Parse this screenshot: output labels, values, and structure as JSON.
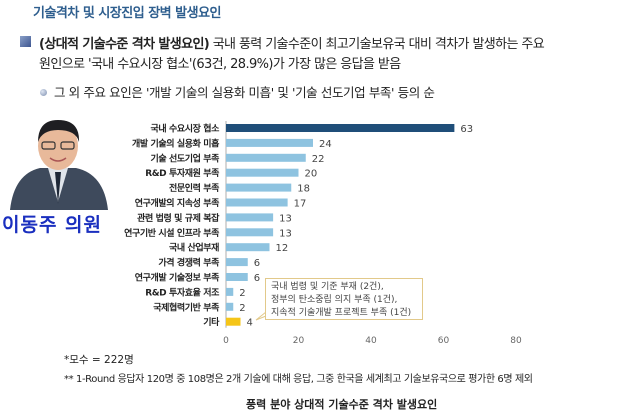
{
  "header": {
    "title": "기술격차 및 시장진입 장벽 발생요인"
  },
  "body": {
    "bullet1_bold": "(상대적 기술수준 격차 발생요인)",
    "bullet1_rest": " 국내 풍력 기술수준이 최고기술보유국 대비 격차가 발생하는 주요",
    "bullet1_line2": "원인으로 '국내 수요시장 협소'(63건, 28.9%)가 가장 많은 응답을 받음",
    "bullet2": "그 외 주요 요인은 '개발 기술의 실용화 미흡' 및 '기술 선도기업 부족' 등의 순"
  },
  "person": {
    "name": "이동주 의원"
  },
  "chart_data": {
    "type": "bar",
    "orientation": "horizontal",
    "categories": [
      "국내 수요시장 협소",
      "개발 기술의 실용화 미흡",
      "기술 선도기업 부족",
      "R&D 투자재원 부족",
      "전문인력 부족",
      "연구개발의 지속성 부족",
      "관련 법령 및 규제 복잡",
      "연구기반 시설 인프라 부족",
      "국내 산업부재",
      "가격 경쟁력 부족",
      "연구개발 기술정보 부족",
      "R&D 투자효율 저조",
      "국제협력기반 부족",
      "기타"
    ],
    "values": [
      63,
      24,
      22,
      20,
      18,
      17,
      13,
      13,
      12,
      6,
      6,
      2,
      2,
      4
    ],
    "colors": {
      "highlight": "#1f4e79",
      "default": "#8ec3e0",
      "other": "#f5c518"
    },
    "xlim": [
      0,
      80
    ],
    "xticks": [
      "0",
      "20",
      "40",
      "60",
      "80"
    ],
    "grid": false,
    "annotation": [
      "국내 법령 및 기준 부재 (2건),",
      "정부의 탄소중립 의지 부족 (1건),",
      "지속적 기술개발 프로젝트 부족 (1건)"
    ],
    "caption": "풍력 분야 상대적 기술수준 격차 발생요인"
  },
  "notes": {
    "n1": "*모수 = 222명",
    "n2": "** 1-Round 응답자 120명 중 108명은 2개 기술에 대해 응답, 그중 한국을 세계최고 기술보유국으로 평가한 6명 제외"
  }
}
